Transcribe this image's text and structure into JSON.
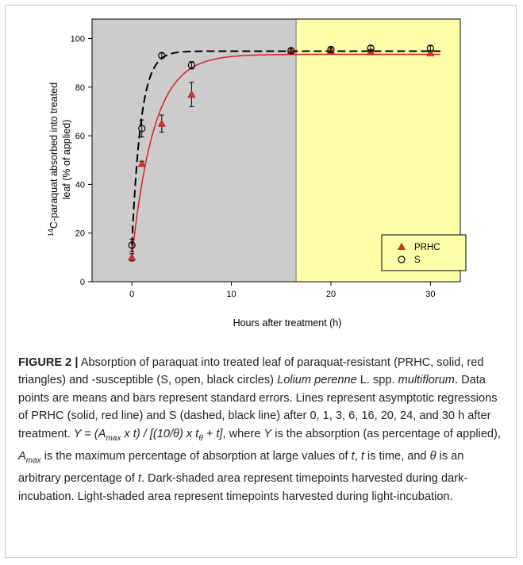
{
  "chart_data": {
    "type": "scatter",
    "xlabel": "Hours after treatment (h)",
    "ylabel_line1": "C-paraquat absorbed into treated",
    "ylabel_sup": "14",
    "ylabel_line2": "leaf (% of applied)",
    "xlim": [
      -4,
      33
    ],
    "ylim": [
      0,
      108
    ],
    "xticks": [
      0,
      10,
      20,
      30
    ],
    "yticks": [
      0,
      20,
      40,
      60,
      80,
      100
    ],
    "regions": [
      {
        "label": "dark-incubation",
        "from": -4,
        "to": 16.5,
        "color": "#cccccc"
      },
      {
        "label": "light-incubation",
        "from": 16.5,
        "to": 33,
        "color": "#ffffaa"
      }
    ],
    "series": [
      {
        "name": "PRHC",
        "marker": "triangle",
        "color": "#e0301e",
        "fit_style": "solid",
        "fit": {
          "Amax": 93.5,
          "k": 0.45,
          "y0": 10
        },
        "points": [
          {
            "x": 0,
            "y": 10,
            "err": 1.5
          },
          {
            "x": 1,
            "y": 48.5,
            "err": 1
          },
          {
            "x": 3,
            "y": 65,
            "err": 3.5
          },
          {
            "x": 6,
            "y": 77,
            "err": 5
          },
          {
            "x": 16,
            "y": 95,
            "err": 1
          },
          {
            "x": 20,
            "y": 95,
            "err": 1
          },
          {
            "x": 24,
            "y": 94.5,
            "err": 1
          },
          {
            "x": 30,
            "y": 94,
            "err": 1
          }
        ]
      },
      {
        "name": "S",
        "marker": "circle",
        "color": "#000000",
        "fit_style": "dashed",
        "fit": {
          "Amax": 94.8,
          "k": 1.1,
          "y0": 15
        },
        "points": [
          {
            "x": 0,
            "y": 15,
            "err": 2.5
          },
          {
            "x": 1,
            "y": 63,
            "err": 3.5
          },
          {
            "x": 3,
            "y": 93,
            "err": 1
          },
          {
            "x": 6,
            "y": 89,
            "err": 1.5
          },
          {
            "x": 16,
            "y": 95,
            "err": 1
          },
          {
            "x": 20,
            "y": 95.5,
            "err": 1
          },
          {
            "x": 24,
            "y": 96,
            "err": 1
          },
          {
            "x": 30,
            "y": 96,
            "err": 1
          }
        ]
      }
    ]
  },
  "caption": {
    "figure_label": "FIGURE 2 |",
    "parts": [
      {
        "t": " Absorption of paraquat into treated leaf of paraquat-resistant (PRHC, solid, red triangles) and -susceptible (S, open, black circles) ",
        "i": false
      },
      {
        "t": "Lolium perenne",
        "i": true
      },
      {
        "t": " L. spp. ",
        "i": false
      },
      {
        "t": "multiflorum",
        "i": true
      },
      {
        "t": ". Data points are means and bars represent standard errors. Lines represent asymptotic regressions of PRHC (solid, red line) and S (dashed, black line) after 0, 1, 3, 6, 16, 20, 24, and 30 h after treatment. ",
        "i": false
      },
      {
        "t": "Y = (A",
        "i": true
      },
      {
        "t": "max",
        "i": true,
        "sub": true
      },
      {
        "t": " x t) / [(10/θ) x t",
        "i": true
      },
      {
        "t": "θ",
        "i": true,
        "sub": true
      },
      {
        "t": " + t]",
        "i": true
      },
      {
        "t": ", where ",
        "i": false
      },
      {
        "t": "Y",
        "i": true
      },
      {
        "t": " is the absorption (as percentage of applied), ",
        "i": false
      },
      {
        "t": "A",
        "i": true
      },
      {
        "t": "max",
        "i": true,
        "sub": true
      },
      {
        "t": " is the maximum percentage of absorption at large values of ",
        "i": false
      },
      {
        "t": "t",
        "i": true
      },
      {
        "t": ", ",
        "i": false
      },
      {
        "t": "t",
        "i": true
      },
      {
        "t": " is time, and ",
        "i": false
      },
      {
        "t": "θ",
        "i": true
      },
      {
        "t": " is an arbitrary percentage of ",
        "i": false
      },
      {
        "t": "t",
        "i": true
      },
      {
        "t": ". Dark-shaded area represent timepoints harvested during dark-incubation. Light-shaded area represent timepoints harvested during light-incubation.",
        "i": false
      }
    ]
  }
}
